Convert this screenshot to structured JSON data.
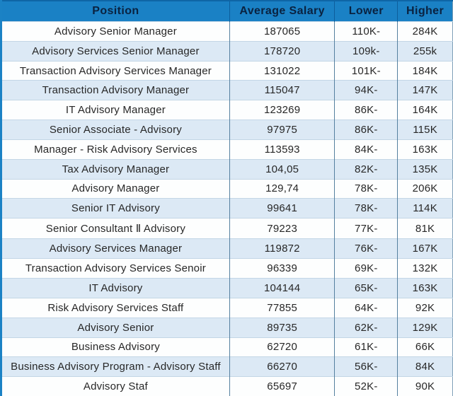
{
  "colors": {
    "header_background": "#1a81c5",
    "header_text": "#0a2240",
    "row_background": "#fdfefe",
    "row_alt_background": "#dce9f5",
    "body_text": "#272727",
    "column_border": "#55809f",
    "row_border": "#c3d6e6",
    "left_edge_stripe": "#1b82c5"
  },
  "chart_data": {
    "type": "table",
    "title": "",
    "columns": [
      "Position",
      "Average Salary",
      "Lower",
      "Higher"
    ],
    "rows": [
      [
        "Advisory Senior Manager",
        "187065",
        "110K-",
        "284K"
      ],
      [
        "Advisory Services Senior Manager",
        "178720",
        "109k-",
        "255k"
      ],
      [
        "Transaction Advisory Services Manager",
        "131022",
        "101K-",
        "184K"
      ],
      [
        "Transaction Advisory Manager",
        "115047",
        "94K-",
        "147K"
      ],
      [
        "IT Advisory Manager",
        "123269",
        "86K-",
        "164K"
      ],
      [
        "Senior Associate - Advisory",
        "97975",
        "86K-",
        "115K"
      ],
      [
        "Manager - Risk Advisory Services",
        "113593",
        "84K-",
        "163K"
      ],
      [
        "Tax Advisory Manager",
        "104,05",
        "82K-",
        "135K"
      ],
      [
        "Advisory Manager",
        "129,74",
        "78K-",
        "206K"
      ],
      [
        "Senior IT Advisory",
        "99641",
        "78K-",
        "114K"
      ],
      [
        "Senior Consultant Ⅱ Advisory",
        "79223",
        "77K-",
        "81K"
      ],
      [
        "Advisory Services Manager",
        "119872",
        "76K-",
        "167K"
      ],
      [
        "Transaction Advisory Services Senoir",
        "96339",
        "69K-",
        "132K"
      ],
      [
        "IT Advisory",
        "104144",
        "65K-",
        "163K"
      ],
      [
        "Risk Advisory Services Staff",
        "77855",
        "64K-",
        "92K"
      ],
      [
        "Advisory Senior",
        "89735",
        "62K-",
        "129K"
      ],
      [
        "Business Advisory",
        "62720",
        "61K-",
        "66K"
      ],
      [
        "Business Advisory Program - Advisory Staff",
        "66270",
        "56K-",
        "84K"
      ],
      [
        "Advisory Staf",
        "65697",
        "52K-",
        "90K"
      ]
    ]
  }
}
